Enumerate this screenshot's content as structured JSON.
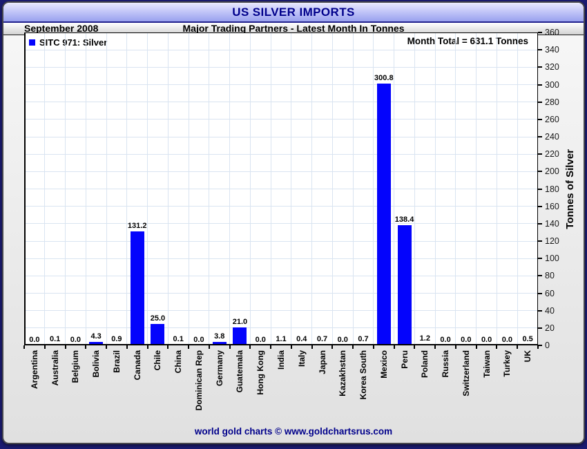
{
  "header": {
    "title": "US SILVER IMPORTS"
  },
  "subheader": {
    "date": "September 2008",
    "subtitle": "Major Trading Partners - Latest Month In Tonnes"
  },
  "legend": {
    "label": "SITC 971: Silver"
  },
  "annotations": {
    "month_total": "Month Total = 631.1 Tonnes"
  },
  "footer": {
    "credit": "world gold charts © www.goldchartsrus.com"
  },
  "colors": {
    "bar": "#0404fc",
    "grid": "#d9e4f1",
    "navy_text": "#00008b",
    "page_bg": "#1b1b72",
    "axis": "#000000"
  },
  "chart_data": {
    "type": "bar",
    "title": "US SILVER IMPORTS",
    "subtitle": "Major Trading Partners - Latest Month In Tonnes",
    "month": "September 2008",
    "month_total_tonnes": 631.1,
    "series_name": "SITC 971: Silver",
    "ylabel": "Tonnes of Silver",
    "ylim": [
      0,
      360
    ],
    "ytick_step": 20,
    "grid": true,
    "legend_position": "top-left",
    "yaxis_side": "right",
    "categories": [
      "Argentina",
      "Australia",
      "Belgium",
      "Bolivia",
      "Brazil",
      "Canada",
      "Chile",
      "China",
      "Dominican Rep",
      "Germany",
      "Guatemala",
      "Hong Kong",
      "India",
      "Italy",
      "Japan",
      "Kazakhstan",
      "Korea South",
      "Mexico",
      "Peru",
      "Poland",
      "Russia",
      "Switzerland",
      "Taiwan",
      "Turkey",
      "UK"
    ],
    "values": [
      0.0,
      0.1,
      0.0,
      4.3,
      0.9,
      131.2,
      25.0,
      0.1,
      0.0,
      3.8,
      21.0,
      0.0,
      1.1,
      0.4,
      0.7,
      0.0,
      0.7,
      300.8,
      138.4,
      1.2,
      0.0,
      0.0,
      0.0,
      0.0,
      0.5
    ]
  }
}
